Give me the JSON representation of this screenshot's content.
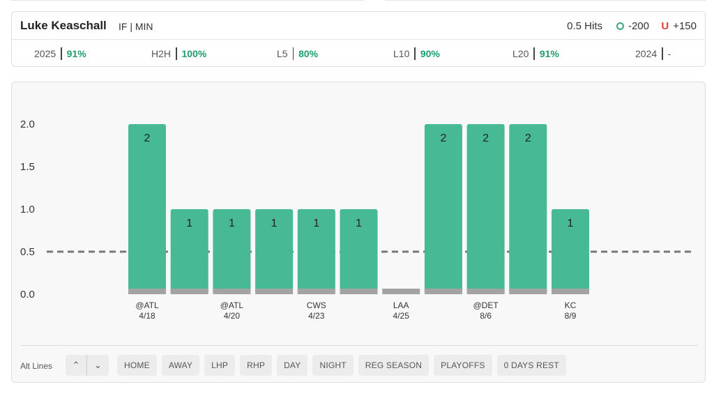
{
  "player": {
    "name": "Luke Keaschall",
    "meta": "IF | MIN",
    "prop": "0.5 Hits",
    "over_odds": "-200",
    "under_letter": "U",
    "under_odds": "+150"
  },
  "stats": [
    {
      "label": "2025",
      "value": "91%"
    },
    {
      "label": "H2H",
      "value": "100%"
    },
    {
      "label": "L5",
      "value": "80%"
    },
    {
      "label": "L10",
      "value": "90%"
    },
    {
      "label": "L20",
      "value": "91%"
    },
    {
      "label": "2024",
      "value": "-"
    }
  ],
  "colors": {
    "bar": "#47b994",
    "bar_base": "#a3a3a3",
    "line": "#777777",
    "stat_value": "#1f9d6a",
    "over": "#3aaa7c",
    "under": "#e23b3b"
  },
  "chart_data": {
    "type": "bar",
    "title": "",
    "xlabel": "",
    "ylabel": "",
    "ylim": [
      0,
      2
    ],
    "yticks": [
      "0.0",
      "0.5",
      "1.0",
      "1.5",
      "2.0"
    ],
    "line_value": 0.5,
    "values": [
      2,
      1,
      1,
      1,
      1,
      1,
      0,
      2,
      2,
      2,
      1
    ],
    "labels": [
      "2",
      "1",
      "1",
      "1",
      "1",
      "1",
      "",
      "2",
      "2",
      "2",
      "1"
    ],
    "categories": [
      {
        "opp": "@ATL",
        "date": "4/18"
      },
      {
        "opp": "",
        "date": ""
      },
      {
        "opp": "@ATL",
        "date": "4/20"
      },
      {
        "opp": "",
        "date": ""
      },
      {
        "opp": "CWS",
        "date": "4/23"
      },
      {
        "opp": "",
        "date": ""
      },
      {
        "opp": "LAA",
        "date": "4/25"
      },
      {
        "opp": "",
        "date": ""
      },
      {
        "opp": "@DET",
        "date": "8/6"
      },
      {
        "opp": "",
        "date": ""
      },
      {
        "opp": "KC",
        "date": "8/9"
      }
    ]
  },
  "controls": {
    "alt_lines_label": "Alt Lines",
    "up_glyph": "⌃",
    "down_glyph": "⌄",
    "filters": [
      "HOME",
      "AWAY",
      "LHP",
      "RHP",
      "DAY",
      "NIGHT",
      "REG SEASON",
      "PLAYOFFS",
      "0 DAYS REST"
    ]
  }
}
